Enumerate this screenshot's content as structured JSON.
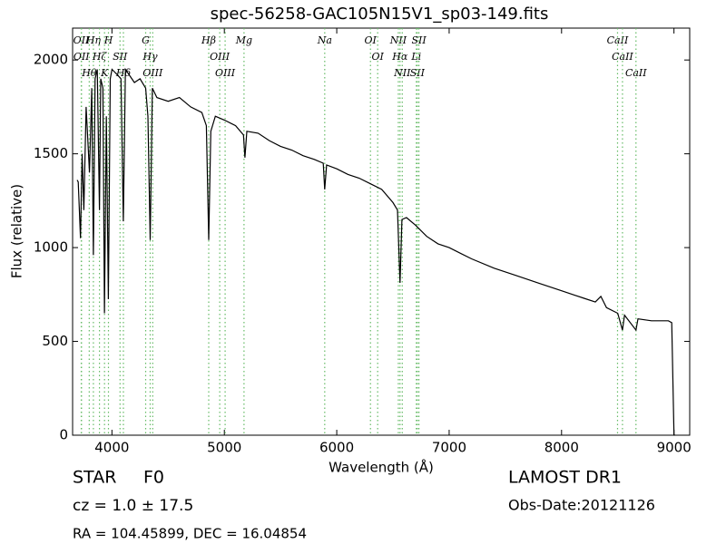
{
  "chart_data": {
    "type": "line",
    "title": "spec-56258-GAC105N15V1_sp03-149.fits",
    "x_label": "Wavelength (Å)",
    "y_label": "Flux (relative)",
    "xlim": [
      3650,
      9140
    ],
    "ylim": [
      0,
      2170
    ],
    "xticks": [
      4000,
      5000,
      6000,
      7000,
      8000,
      9000
    ],
    "yticks": [
      0,
      500,
      1000,
      1500,
      2000
    ],
    "color": "#000000",
    "line_color": "#66bb66",
    "x": [
      3690,
      3700,
      3720,
      3735,
      3750,
      3770,
      3800,
      3820,
      3835,
      3850,
      3870,
      3889,
      3900,
      3920,
      3933,
      3950,
      3968,
      3985,
      4000,
      4050,
      4080,
      4101,
      4120,
      4200,
      4250,
      4300,
      4320,
      4340,
      4360,
      4400,
      4500,
      4600,
      4700,
      4800,
      4840,
      4861,
      4880,
      4920,
      5000,
      5100,
      5170,
      5183,
      5200,
      5300,
      5400,
      5500,
      5600,
      5700,
      5800,
      5880,
      5893,
      5910,
      6000,
      6100,
      6200,
      6300,
      6400,
      6500,
      6540,
      6563,
      6580,
      6620,
      6700,
      6800,
      6900,
      7000,
      7200,
      7400,
      7600,
      7800,
      8000,
      8200,
      8300,
      8350,
      8400,
      8500,
      8542,
      8560,
      8662,
      8680,
      8800,
      8950,
      8980,
      9000,
      9010
    ],
    "values": [
      1360,
      1350,
      1050,
      1500,
      1200,
      1750,
      1400,
      1850,
      960,
      1900,
      1950,
      1200,
      1900,
      1850,
      650,
      1700,
      725,
      1900,
      1950,
      1920,
      1900,
      1140,
      1950,
      1880,
      1900,
      1850,
      1700,
      1040,
      1850,
      1800,
      1780,
      1800,
      1750,
      1720,
      1650,
      1040,
      1620,
      1700,
      1680,
      1650,
      1600,
      1480,
      1620,
      1610,
      1570,
      1540,
      1520,
      1490,
      1470,
      1450,
      1310,
      1440,
      1420,
      1390,
      1370,
      1340,
      1310,
      1240,
      1200,
      812,
      1150,
      1160,
      1120,
      1060,
      1020,
      1000,
      940,
      890,
      850,
      810,
      770,
      730,
      710,
      740,
      680,
      650,
      560,
      640,
      560,
      620,
      610,
      610,
      600,
      0,
      0
    ],
    "lines": [
      {
        "x": 3727,
        "label": "OII"
      },
      {
        "x": 3729,
        "label": "OII"
      },
      {
        "x": 3798,
        "label": "Hθ"
      },
      {
        "x": 3835,
        "label": "Hη"
      },
      {
        "x": 3889,
        "label": "Hζ"
      },
      {
        "x": 3934,
        "label": "K"
      },
      {
        "x": 3969,
        "label": "H"
      },
      {
        "x": 4072,
        "label": "SII"
      },
      {
        "x": 4102,
        "label": "Hδ"
      },
      {
        "x": 4300,
        "label": "G"
      },
      {
        "x": 4340,
        "label": "Hγ"
      },
      {
        "x": 4363,
        "label": "OIII"
      },
      {
        "x": 4861,
        "label": "Hβ"
      },
      {
        "x": 4959,
        "label": "OIII"
      },
      {
        "x": 5007,
        "label": "OIII"
      },
      {
        "x": 5175,
        "label": "Mg"
      },
      {
        "x": 5893,
        "label": "Na"
      },
      {
        "x": 6300,
        "label": "OI"
      },
      {
        "x": 6364,
        "label": "OI"
      },
      {
        "x": 6548,
        "label": "NII"
      },
      {
        "x": 6563,
        "label": "Hα"
      },
      {
        "x": 6583,
        "label": "NII"
      },
      {
        "x": 6708,
        "label": "Li"
      },
      {
        "x": 6717,
        "label": "SII"
      },
      {
        "x": 6731,
        "label": "SII"
      },
      {
        "x": 8498,
        "label": "CaII"
      },
      {
        "x": 8542,
        "label": "CaII"
      },
      {
        "x": 8662,
        "label": "CaII"
      }
    ]
  },
  "info": {
    "class": "STAR",
    "subclass": "F0",
    "cz": "cz = 1.0 ± 17.5",
    "coords": "RA = 104.45899, DEC = 16.04854",
    "release": "LAMOST DR1",
    "obs_date": "Obs-Date:20121126"
  }
}
